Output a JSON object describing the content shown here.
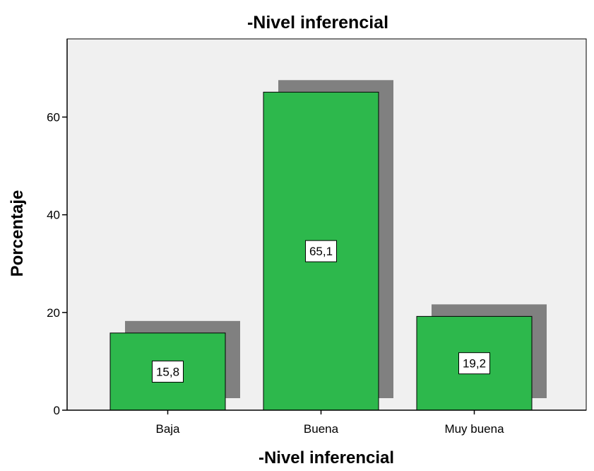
{
  "chart_data": {
    "type": "bar",
    "title": "-Nivel inferencial",
    "xlabel": "-Nivel inferencial",
    "ylabel": "Porcentaje",
    "categories": [
      "Baja",
      "Buena",
      "Muy buena"
    ],
    "values": [
      15.8,
      65.1,
      19.2
    ],
    "data_labels": [
      "15,8",
      "65,1",
      "19,2"
    ],
    "ylim": [
      0,
      76
    ],
    "yticks": [
      0,
      20,
      40,
      60
    ],
    "ytick_labels": [
      "0",
      "20",
      "40",
      "60"
    ],
    "grid": false,
    "legend": "none",
    "style_3d_shadow": true
  },
  "colors": {
    "bar": "#2db84c",
    "shadow": "#808080",
    "plot_background": "#f0f0f0",
    "axis": "#000000"
  }
}
